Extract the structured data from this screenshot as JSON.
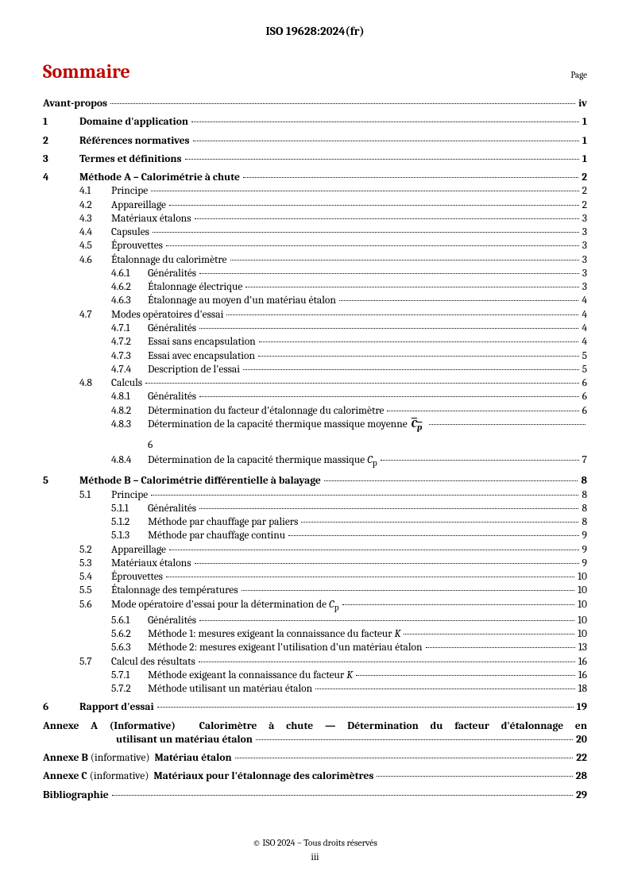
{
  "header": "ISO 19628:2024(fr)",
  "sommaire": "Sommaire",
  "page_label": "Page",
  "footer_copyright": "© ISO 2024 – Tous droits réservés",
  "footer_pagenum": "iii",
  "toc": [
    {
      "lvl": 0,
      "title": "Avant-propos",
      "page": "iv",
      "gap_after": true
    },
    {
      "lvl": 1,
      "num": "1",
      "title": "Domaine d'application",
      "page": "1",
      "gap_after": true
    },
    {
      "lvl": 1,
      "num": "2",
      "title": "Références normatives",
      "page": "1",
      "gap_after": true
    },
    {
      "lvl": 1,
      "num": "3",
      "title": "Termes et définitions",
      "page": "1",
      "gap_after": true
    },
    {
      "lvl": 1,
      "num": "4",
      "title": "Méthode A – Calorimétrie à chute",
      "page": "2"
    },
    {
      "lvl": 2,
      "num": "4.1",
      "title": "Principe",
      "page": "2"
    },
    {
      "lvl": 2,
      "num": "4.2",
      "title": "Appareillage",
      "page": "2"
    },
    {
      "lvl": 2,
      "num": "4.3",
      "title": "Matériaux étalons",
      "page": "3"
    },
    {
      "lvl": 2,
      "num": "4.4",
      "title": "Capsules",
      "page": "3"
    },
    {
      "lvl": 2,
      "num": "4.5",
      "title": "Éprouvettes",
      "page": "3"
    },
    {
      "lvl": 2,
      "num": "4.6",
      "title": "Étalonnage du calorimètre",
      "page": "3"
    },
    {
      "lvl": 3,
      "num": "4.6.1",
      "title": "Généralités",
      "page": "3"
    },
    {
      "lvl": 3,
      "num": "4.6.2",
      "title": "Étalonnage électrique",
      "page": "3"
    },
    {
      "lvl": 3,
      "num": "4.6.3",
      "title": "Étalonnage au moyen d'un matériau étalon",
      "page": "4"
    },
    {
      "lvl": 2,
      "num": "4.7",
      "title": "Modes opératoires d'essai",
      "page": "4"
    },
    {
      "lvl": 3,
      "num": "4.7.1",
      "title": "Généralités",
      "page": "4"
    },
    {
      "lvl": 3,
      "num": "4.7.2",
      "title": "Essai sans encapsulation",
      "page": "4"
    },
    {
      "lvl": 3,
      "num": "4.7.3",
      "title": "Essai avec encapsulation",
      "page": "5"
    },
    {
      "lvl": 3,
      "num": "4.7.4",
      "title": "Description de l'essai",
      "page": "5"
    },
    {
      "lvl": 2,
      "num": "4.8",
      "title": "Calculs",
      "page": "6"
    },
    {
      "lvl": 3,
      "num": "4.8.1",
      "title": "Généralités",
      "page": "6"
    },
    {
      "lvl": 3,
      "num": "4.8.2",
      "title": "Détermination du facteur d'étalonnage du calorimètre",
      "page": "6"
    },
    {
      "special": "483",
      "num": "4.8.3",
      "title_pre": "Détermination de la capacité thermique massique moyenne ",
      "title_math": "C",
      "title_sub": "p",
      "page": "6"
    },
    {
      "lvl": 3,
      "num": "4.8.4",
      "title_html": "Détermination de la capacité thermique massique <i>C</i><sub>p</sub>",
      "page": "7",
      "gap_after": true
    },
    {
      "lvl": 1,
      "num": "5",
      "title": "Méthode B – Calorimétrie différentielle à balayage",
      "page": "8"
    },
    {
      "lvl": 2,
      "num": "5.1",
      "title": "Principe",
      "page": "8"
    },
    {
      "lvl": 3,
      "num": "5.1.1",
      "title": "Généralités",
      "page": "8"
    },
    {
      "lvl": 3,
      "num": "5.1.2",
      "title": "Méthode par chauffage par paliers",
      "page": "8"
    },
    {
      "lvl": 3,
      "num": "5.1.3",
      "title": "Méthode par chauffage continu",
      "page": "9"
    },
    {
      "lvl": 2,
      "num": "5.2",
      "title": "Appareillage",
      "page": "9"
    },
    {
      "lvl": 2,
      "num": "5.3",
      "title": "Matériaux étalons",
      "page": "9"
    },
    {
      "lvl": 2,
      "num": "5.4",
      "title": "Éprouvettes",
      "page": "10"
    },
    {
      "lvl": 2,
      "num": "5.5",
      "title": "Étalonnage des températures",
      "page": "10"
    },
    {
      "lvl": 2,
      "num": "5.6",
      "title_html": "Mode opératoire d'essai pour la détermination de <i>C</i><sub>p</sub>",
      "page": "10"
    },
    {
      "lvl": 3,
      "num": "5.6.1",
      "title": "Généralités",
      "page": "10"
    },
    {
      "lvl": 3,
      "num": "5.6.2",
      "title_html": "Méthode 1: mesures exigeant la connaissance du facteur <i>K</i>",
      "page": "10"
    },
    {
      "lvl": 3,
      "num": "5.6.3",
      "title": "Méthode 2: mesures exigeant l'utilisation d'un matériau étalon",
      "page": "13"
    },
    {
      "lvl": 2,
      "num": "5.7",
      "title": "Calcul des résultats",
      "page": "16"
    },
    {
      "lvl": 3,
      "num": "5.7.1",
      "title_html": "Méthode exigeant la connaissance du facteur <i>K</i>",
      "page": "16"
    },
    {
      "lvl": 3,
      "num": "5.7.2",
      "title": "Méthode utilisant un matériau étalon",
      "page": "18",
      "gap_after": true
    },
    {
      "lvl": 1,
      "num": "6",
      "title": "Rapport d'essai",
      "page": "19",
      "gap_after": true
    },
    {
      "annex_multi": true,
      "line1": "<b>Annexe A</b> (Informative)&nbsp;&nbsp;<b>Calorimètre à chute — Détermination du facteur d'étalonnage en</b>",
      "line2": "utilisant un matériau étalon",
      "page": "20",
      "gap_after": true
    },
    {
      "annex": true,
      "title_html": "<b>Annexe B</b> (informative)&nbsp;&nbsp;<b>Matériau étalon</b>",
      "page": "22",
      "gap_after": true
    },
    {
      "annex": true,
      "title_html": "<b>Annexe C</b> (informative)&nbsp;&nbsp;<b>Matériaux pour l'étalonnage des calorimètres</b>",
      "page": "28",
      "gap_after": true
    },
    {
      "lvl": 0,
      "title": "Bibliographie",
      "page": "29"
    }
  ]
}
